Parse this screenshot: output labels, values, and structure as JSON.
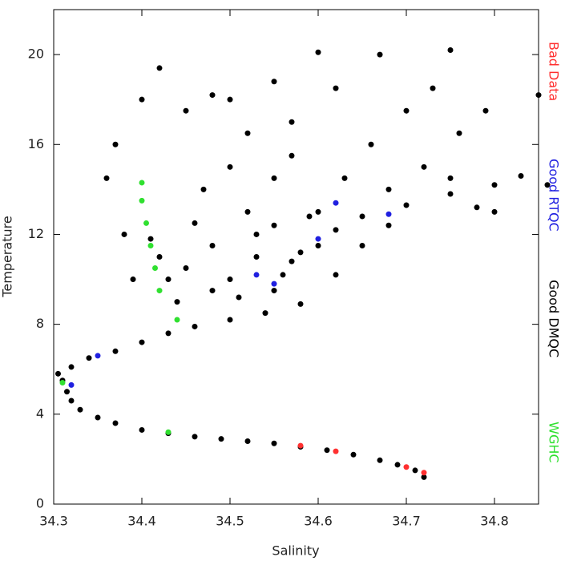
{
  "chart_data": {
    "type": "scatter",
    "x_label": "Salinity",
    "y_label": "Temperature",
    "xlim": [
      34.3,
      34.85
    ],
    "ylim": [
      0,
      22
    ],
    "xticks": [
      34.3,
      34.4,
      34.5,
      34.6,
      34.7,
      34.8
    ],
    "yticks": [
      0,
      4,
      8,
      12,
      16,
      20
    ],
    "series": [
      {
        "name": "Bad Data",
        "color": "#ff3030",
        "x": [
          34.72,
          34.7,
          34.62,
          34.58
        ],
        "values": [
          1.4,
          1.65,
          2.35,
          2.6
        ]
      },
      {
        "name": "Good RTQC",
        "color": "#2020e0",
        "x": [
          34.55,
          34.53,
          34.6,
          34.62,
          34.32,
          34.35,
          34.68
        ],
        "values": [
          9.8,
          10.2,
          11.8,
          13.4,
          5.3,
          6.6,
          12.9
        ]
      },
      {
        "name": "Good DMQC",
        "color": "#000000",
        "x": [
          34.72,
          34.71,
          34.69,
          34.67,
          34.64,
          34.61,
          34.58,
          34.55,
          34.52,
          34.49,
          34.46,
          34.43,
          34.4,
          34.37,
          34.35,
          34.33,
          34.32,
          34.315,
          34.31,
          34.305,
          34.32,
          34.34,
          34.37,
          34.4,
          34.43,
          34.46,
          34.5,
          34.54,
          34.58,
          34.55,
          34.5,
          34.45,
          34.42,
          34.48,
          34.53,
          34.57,
          34.6,
          34.62,
          34.65,
          34.7,
          34.75,
          34.8,
          34.83,
          34.78,
          34.68,
          34.52,
          34.47,
          34.5,
          34.52,
          34.45,
          34.4,
          34.42,
          34.37,
          34.36,
          34.38,
          34.39,
          34.44,
          34.48,
          34.56,
          34.58,
          34.6,
          34.63,
          34.66,
          34.7,
          34.73,
          34.75,
          34.67,
          34.6,
          34.55,
          34.5,
          34.48,
          34.57,
          34.62,
          34.76,
          34.79,
          34.85,
          34.86,
          34.8,
          34.75,
          34.72,
          34.68,
          34.55,
          34.46,
          34.43,
          34.41,
          34.53,
          34.51,
          34.62,
          34.65,
          34.57,
          34.59,
          34.55
        ],
        "values": [
          1.2,
          1.5,
          1.75,
          1.95,
          2.2,
          2.4,
          2.55,
          2.7,
          2.8,
          2.9,
          3.0,
          3.15,
          3.3,
          3.6,
          3.85,
          4.2,
          4.6,
          5.0,
          5.5,
          5.8,
          6.1,
          6.5,
          6.8,
          7.2,
          7.6,
          7.9,
          8.2,
          8.5,
          8.9,
          9.5,
          10,
          10.5,
          11,
          11.5,
          12,
          10.8,
          11.5,
          12.2,
          12.8,
          13.3,
          13.8,
          14.2,
          14.6,
          13.2,
          12.4,
          13,
          14,
          15,
          16.5,
          17.5,
          18,
          19.4,
          16,
          14.5,
          12,
          10,
          9,
          9.5,
          10.2,
          11.2,
          13,
          14.5,
          16,
          17.5,
          18.5,
          20.2,
          20,
          20.1,
          18.8,
          18,
          18.2,
          17,
          18.5,
          16.5,
          17.5,
          18.2,
          14.2,
          13,
          14.5,
          15,
          14,
          14.5,
          12.5,
          10,
          11.8,
          11,
          9.2,
          10.2,
          11.5,
          15.5,
          12.8,
          12.4
        ]
      },
      {
        "name": "WGHC",
        "color": "#30e030",
        "x": [
          34.4,
          34.4,
          34.405,
          34.41,
          34.415,
          34.42,
          34.44,
          34.31,
          34.43
        ],
        "values": [
          14.3,
          13.5,
          12.5,
          11.5,
          10.5,
          9.5,
          8.2,
          5.4,
          3.2
        ]
      }
    ]
  }
}
